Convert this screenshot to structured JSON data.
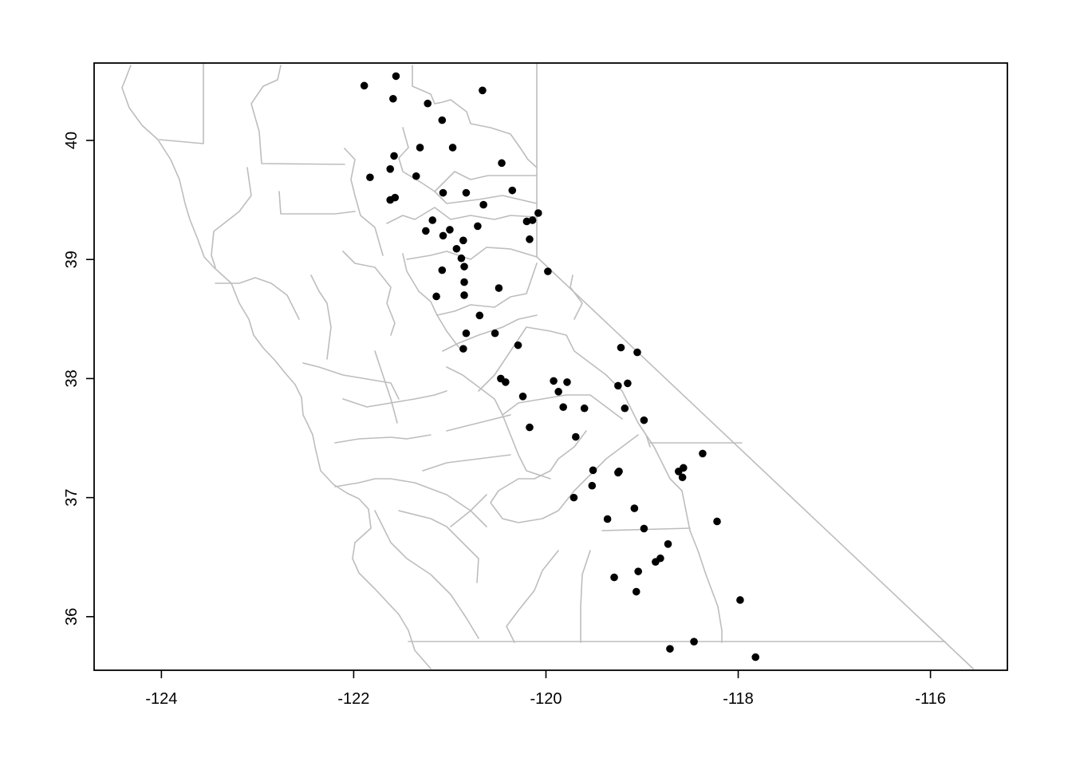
{
  "chart_data": {
    "type": "scatter",
    "title": "",
    "xlabel": "",
    "ylabel": "",
    "xlim": [
      -124.7,
      -115.2
    ],
    "ylim": [
      35.55,
      40.65
    ],
    "x_ticks": [
      -124,
      -122,
      -120,
      -118,
      -116
    ],
    "y_ticks": [
      36,
      37,
      38,
      39,
      40
    ],
    "x_tick_labels": [
      "-124",
      "-122",
      "-120",
      "-118",
      "-116"
    ],
    "y_tick_labels": [
      "36",
      "37",
      "38",
      "39",
      "40"
    ],
    "basemap": "California county boundaries (gray outlines)",
    "colors": {
      "points": "#000000",
      "boundaries": "#bdbdbd",
      "frame": "#000000"
    },
    "series": [
      {
        "x": [
          -121.89,
          -121.56,
          -121.59,
          -120.66,
          -121.23,
          -121.08,
          -121.31,
          -120.97,
          -120.46,
          -121.58,
          -121.62,
          -121.83,
          -121.35,
          -121.57,
          -121.07,
          -121.62,
          -120.83,
          -120.35,
          -120.65,
          -121.18,
          -121.25,
          -121.0,
          -120.71,
          -121.07,
          -120.2,
          -120.14,
          -120.08,
          -120.86,
          -120.17,
          -120.93,
          -120.88,
          -120.85,
          -121.08,
          -120.85,
          -120.49,
          -119.98,
          -120.85,
          -121.14,
          -120.69,
          -120.83,
          -120.53,
          -120.86,
          -120.29,
          -119.22,
          -119.05,
          -120.47,
          -120.42,
          -119.92,
          -119.87,
          -119.78,
          -119.25,
          -119.15,
          -119.82,
          -120.24,
          -119.6,
          -119.18,
          -118.98,
          -120.17,
          -119.69,
          -118.37,
          -118.57,
          -118.62,
          -118.58,
          -119.51,
          -119.25,
          -119.24,
          -119.52,
          -119.71,
          -119.08,
          -118.22,
          -119.36,
          -118.98,
          -118.73,
          -118.81,
          -118.86,
          -119.04,
          -119.29,
          -119.06,
          -117.98,
          -118.46,
          -118.71,
          -117.82
        ],
        "y": [
          40.46,
          40.54,
          40.35,
          40.42,
          40.31,
          40.17,
          39.94,
          39.94,
          39.81,
          39.87,
          39.76,
          39.69,
          39.7,
          39.52,
          39.56,
          39.5,
          39.56,
          39.58,
          39.46,
          39.33,
          39.24,
          39.25,
          39.28,
          39.2,
          39.32,
          39.33,
          39.39,
          39.16,
          39.17,
          39.09,
          39.01,
          38.94,
          38.91,
          38.81,
          38.76,
          38.9,
          38.7,
          38.69,
          38.53,
          38.38,
          38.38,
          38.25,
          38.28,
          38.26,
          38.22,
          38.0,
          37.97,
          37.98,
          37.89,
          37.97,
          37.94,
          37.96,
          37.76,
          37.85,
          37.75,
          37.75,
          37.65,
          37.59,
          37.51,
          37.37,
          37.25,
          37.22,
          37.17,
          37.23,
          37.21,
          37.22,
          37.1,
          37.0,
          36.91,
          36.8,
          36.82,
          36.74,
          36.61,
          36.49,
          36.46,
          36.38,
          36.33,
          36.21,
          36.14,
          35.79,
          35.73,
          35.66
        ]
      }
    ]
  }
}
